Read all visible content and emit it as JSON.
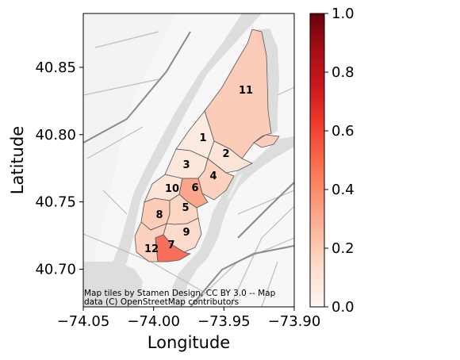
{
  "map": {
    "xlabel": "Longitude",
    "ylabel": "Latitude",
    "xlim": [
      -74.05,
      -73.9
    ],
    "ylim": [
      40.672,
      40.89
    ],
    "x_ticks": [
      {
        "value": -74.05,
        "label": "−74.05"
      },
      {
        "value": -74.0,
        "label": "−74.00"
      },
      {
        "value": -73.95,
        "label": "−73.95"
      },
      {
        "value": -73.9,
        "label": "−73.90"
      }
    ],
    "y_ticks": [
      {
        "value": 40.7,
        "label": "40.70"
      },
      {
        "value": 40.75,
        "label": "40.75"
      },
      {
        "value": 40.8,
        "label": "40.80"
      },
      {
        "value": 40.85,
        "label": "40.85"
      }
    ],
    "attribution": [
      "Map tiles by Stamen Design, CC BY 3.0 -- Map",
      "data (C) OpenStreetMap contributors"
    ],
    "zones": [
      {
        "id": "1",
        "label": "1",
        "value": 0.08
      },
      {
        "id": "2",
        "label": "2",
        "value": 0.12
      },
      {
        "id": "3",
        "label": "3",
        "value": 0.1
      },
      {
        "id": "4",
        "label": "4",
        "value": 0.2
      },
      {
        "id": "5",
        "label": "5",
        "value": 0.18
      },
      {
        "id": "6",
        "label": "6",
        "value": 0.36
      },
      {
        "id": "7",
        "label": "7",
        "value": 0.55
      },
      {
        "id": "8",
        "label": "8",
        "value": 0.22
      },
      {
        "id": "9",
        "label": "9",
        "value": 0.16
      },
      {
        "id": "10",
        "label": "10",
        "value": 0.12
      },
      {
        "id": "11",
        "label": "11",
        "value": 0.22
      },
      {
        "id": "12",
        "label": "12",
        "value": 0.2
      }
    ]
  },
  "colorbar": {
    "colormap": "Reds",
    "range": [
      0.0,
      1.0
    ],
    "ticks": [
      {
        "value": 0.0,
        "label": "0.0"
      },
      {
        "value": 0.2,
        "label": "0.2"
      },
      {
        "value": 0.4,
        "label": "0.4"
      },
      {
        "value": 0.6,
        "label": "0.6"
      },
      {
        "value": 0.8,
        "label": "0.8"
      },
      {
        "value": 1.0,
        "label": "1.0"
      }
    ]
  },
  "colors": {
    "water": "#dddddd",
    "land": "#f7f7f7",
    "zone_edge": "#555555",
    "scale_low": "#fff5f0",
    "scale_high": "#67000d"
  }
}
